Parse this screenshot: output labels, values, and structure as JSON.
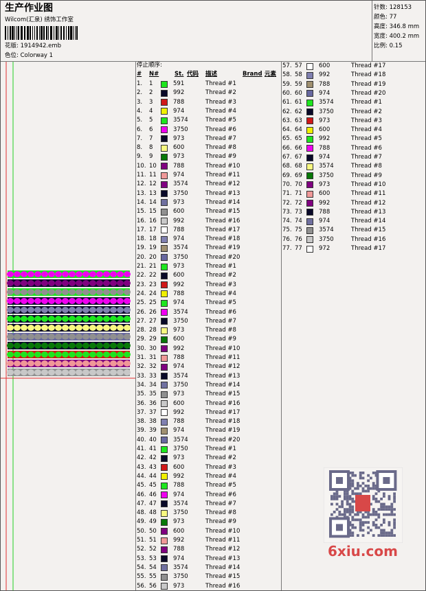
{
  "header": {
    "title": "生产作业图",
    "studio": "Wilcom(汇泉) 绣饰工作室",
    "design": "花版: 1914942.emb",
    "colorway": "色位: Colorway 1"
  },
  "stats": [
    "针数: 128153",
    "颜色: 77",
    "高度: 346.8 mm",
    "宽度: 400.2 mm",
    "比例: 0.15"
  ],
  "table": {
    "caption": "停止顺序:",
    "headers": [
      "#",
      "N#",
      "St.",
      "代码",
      "描述",
      "Brand",
      "元素"
    ],
    "rows": [
      [
        "1.",
        "1",
        "#1ee61e",
        "591",
        "Thread #1"
      ],
      [
        "2.",
        "2",
        "#0a0a28",
        "992",
        "Thread #2"
      ],
      [
        "3.",
        "3",
        "#d01818",
        "788",
        "Thread #3"
      ],
      [
        "4.",
        "4",
        "#f0f000",
        "974",
        "Thread #4"
      ],
      [
        "5.",
        "5",
        "#1ee61e",
        "3574",
        "Thread #5"
      ],
      [
        "6.",
        "6",
        "#f000f0",
        "3750",
        "Thread #6"
      ],
      [
        "7.",
        "7",
        "#0a0a28",
        "973",
        "Thread #7"
      ],
      [
        "8.",
        "8",
        "#f8f880",
        "600",
        "Thread #8"
      ],
      [
        "9.",
        "9",
        "#087808",
        "973",
        "Thread #9"
      ],
      [
        "10.",
        "10",
        "#800080",
        "788",
        "Thread #10"
      ],
      [
        "11.",
        "11",
        "#f09898",
        "974",
        "Thread #11"
      ],
      [
        "12.",
        "12",
        "#800080",
        "3574",
        "Thread #12"
      ],
      [
        "13.",
        "13",
        "#0a0a28",
        "3750",
        "Thread #13"
      ],
      [
        "14.",
        "14",
        "#7070a0",
        "973",
        "Thread #14"
      ],
      [
        "15.",
        "15",
        "#909090",
        "600",
        "Thread #15"
      ],
      [
        "16.",
        "16",
        "#c8c8c8",
        "992",
        "Thread #16"
      ],
      [
        "17.",
        "17",
        "#ffffff",
        "788",
        "Thread #17"
      ],
      [
        "18.",
        "18",
        "#8080b0",
        "974",
        "Thread #18"
      ],
      [
        "19.",
        "19",
        "#a09070",
        "3574",
        "Thread #19"
      ],
      [
        "20.",
        "20",
        "#6868a0",
        "3750",
        "Thread #20"
      ],
      [
        "21.",
        "21",
        "#1ee61e",
        "973",
        "Thread #1"
      ],
      [
        "22.",
        "22",
        "#0a0a28",
        "600",
        "Thread #2"
      ],
      [
        "23.",
        "23",
        "#d01818",
        "992",
        "Thread #3"
      ],
      [
        "24.",
        "24",
        "#f0f000",
        "788",
        "Thread #4"
      ],
      [
        "25.",
        "25",
        "#1ee61e",
        "974",
        "Thread #5"
      ],
      [
        "26.",
        "26",
        "#f000f0",
        "3574",
        "Thread #6"
      ],
      [
        "27.",
        "27",
        "#0a0a28",
        "3750",
        "Thread #7"
      ],
      [
        "28.",
        "28",
        "#f8f880",
        "973",
        "Thread #8"
      ],
      [
        "29.",
        "29",
        "#087808",
        "600",
        "Thread #9"
      ],
      [
        "30.",
        "30",
        "#800080",
        "992",
        "Thread #10"
      ],
      [
        "31.",
        "31",
        "#f09898",
        "788",
        "Thread #11"
      ],
      [
        "32.",
        "32",
        "#800080",
        "974",
        "Thread #12"
      ],
      [
        "33.",
        "33",
        "#0a0a28",
        "3574",
        "Thread #13"
      ],
      [
        "34.",
        "34",
        "#7070a0",
        "3750",
        "Thread #14"
      ],
      [
        "35.",
        "35",
        "#909090",
        "973",
        "Thread #15"
      ],
      [
        "36.",
        "36",
        "#c8c8c8",
        "600",
        "Thread #16"
      ],
      [
        "37.",
        "37",
        "#ffffff",
        "992",
        "Thread #17"
      ],
      [
        "38.",
        "38",
        "#8080b0",
        "788",
        "Thread #18"
      ],
      [
        "39.",
        "39",
        "#a09070",
        "974",
        "Thread #19"
      ],
      [
        "40.",
        "40",
        "#6868a0",
        "3574",
        "Thread #20"
      ],
      [
        "41.",
        "41",
        "#1ee61e",
        "3750",
        "Thread #1"
      ],
      [
        "42.",
        "42",
        "#0a0a28",
        "973",
        "Thread #2"
      ],
      [
        "43.",
        "43",
        "#d01818",
        "600",
        "Thread #3"
      ],
      [
        "44.",
        "44",
        "#f0f000",
        "992",
        "Thread #4"
      ],
      [
        "45.",
        "45",
        "#1ee61e",
        "788",
        "Thread #5"
      ],
      [
        "46.",
        "46",
        "#f000f0",
        "974",
        "Thread #6"
      ],
      [
        "47.",
        "47",
        "#0a0a28",
        "3574",
        "Thread #7"
      ],
      [
        "48.",
        "48",
        "#f8f880",
        "3750",
        "Thread #8"
      ],
      [
        "49.",
        "49",
        "#087808",
        "973",
        "Thread #9"
      ],
      [
        "50.",
        "50",
        "#800080",
        "600",
        "Thread #10"
      ],
      [
        "51.",
        "51",
        "#f09898",
        "992",
        "Thread #11"
      ],
      [
        "52.",
        "52",
        "#800080",
        "788",
        "Thread #12"
      ],
      [
        "53.",
        "53",
        "#0a0a28",
        "974",
        "Thread #13"
      ],
      [
        "54.",
        "54",
        "#7070a0",
        "3574",
        "Thread #14"
      ],
      [
        "55.",
        "55",
        "#909090",
        "3750",
        "Thread #15"
      ],
      [
        "56.",
        "56",
        "#c8c8c8",
        "973",
        "Thread #16"
      ],
      [
        "57.",
        "57",
        "#ffffff",
        "600",
        "Thread #17"
      ],
      [
        "58.",
        "58",
        "#8080b0",
        "992",
        "Thread #18"
      ],
      [
        "59.",
        "59",
        "#a09070",
        "788",
        "Thread #19"
      ],
      [
        "60.",
        "60",
        "#6868a0",
        "974",
        "Thread #20"
      ],
      [
        "61.",
        "61",
        "#1ee61e",
        "3574",
        "Thread #1"
      ],
      [
        "62.",
        "62",
        "#0a0a28",
        "3750",
        "Thread #2"
      ],
      [
        "63.",
        "63",
        "#d01818",
        "973",
        "Thread #3"
      ],
      [
        "64.",
        "64",
        "#f0f000",
        "600",
        "Thread #4"
      ],
      [
        "65.",
        "65",
        "#1ee61e",
        "992",
        "Thread #5"
      ],
      [
        "66.",
        "66",
        "#f000f0",
        "788",
        "Thread #6"
      ],
      [
        "67.",
        "67",
        "#0a0a28",
        "974",
        "Thread #7"
      ],
      [
        "68.",
        "68",
        "#f8f880",
        "3574",
        "Thread #8"
      ],
      [
        "69.",
        "69",
        "#087808",
        "3750",
        "Thread #9"
      ],
      [
        "70.",
        "70",
        "#800080",
        "973",
        "Thread #10"
      ],
      [
        "71.",
        "71",
        "#f09898",
        "600",
        "Thread #11"
      ],
      [
        "72.",
        "72",
        "#800080",
        "992",
        "Thread #12"
      ],
      [
        "73.",
        "73",
        "#0a0a28",
        "788",
        "Thread #13"
      ],
      [
        "74.",
        "74",
        "#7070a0",
        "974",
        "Thread #14"
      ],
      [
        "75.",
        "75",
        "#909090",
        "3574",
        "Thread #15"
      ],
      [
        "76.",
        "76",
        "#c8c8c8",
        "3750",
        "Thread #16"
      ],
      [
        "77.",
        "77",
        "#ffffff",
        "972",
        "Thread #17"
      ]
    ]
  },
  "watermark": "6xiu.com"
}
